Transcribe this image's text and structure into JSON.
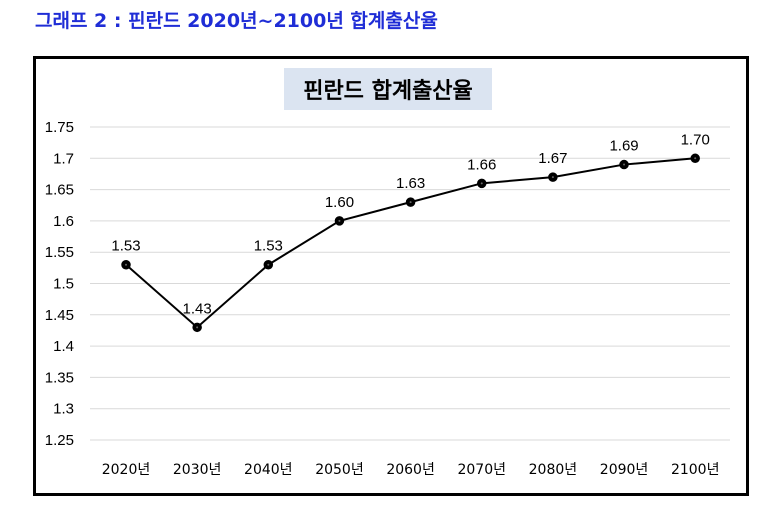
{
  "caption": "그래프 2 : 핀란드 2020년~2100년 합계출산율",
  "chart_data": {
    "type": "line",
    "title": "핀란드 합계출산율",
    "categories": [
      "2020년",
      "2030년",
      "2040년",
      "2050년",
      "2060년",
      "2070년",
      "2080년",
      "2090년",
      "2100년"
    ],
    "values": [
      1.53,
      1.43,
      1.53,
      1.6,
      1.63,
      1.66,
      1.67,
      1.69,
      1.7
    ],
    "data_labels": [
      "1.53",
      "1.43",
      "1.53",
      "1.60",
      "1.63",
      "1.66",
      "1.67",
      "1.69",
      "1.70"
    ],
    "y_ticks": [
      "1.75",
      "1.7",
      "1.65",
      "1.6",
      "1.55",
      "1.5",
      "1.45",
      "1.4",
      "1.35",
      "1.3",
      "1.25"
    ],
    "ylim": [
      1.25,
      1.75
    ],
    "grid": true,
    "legend": "none",
    "line_color": "#000000",
    "marker_color": "#000000",
    "grid_color": "#d9d9d9"
  }
}
